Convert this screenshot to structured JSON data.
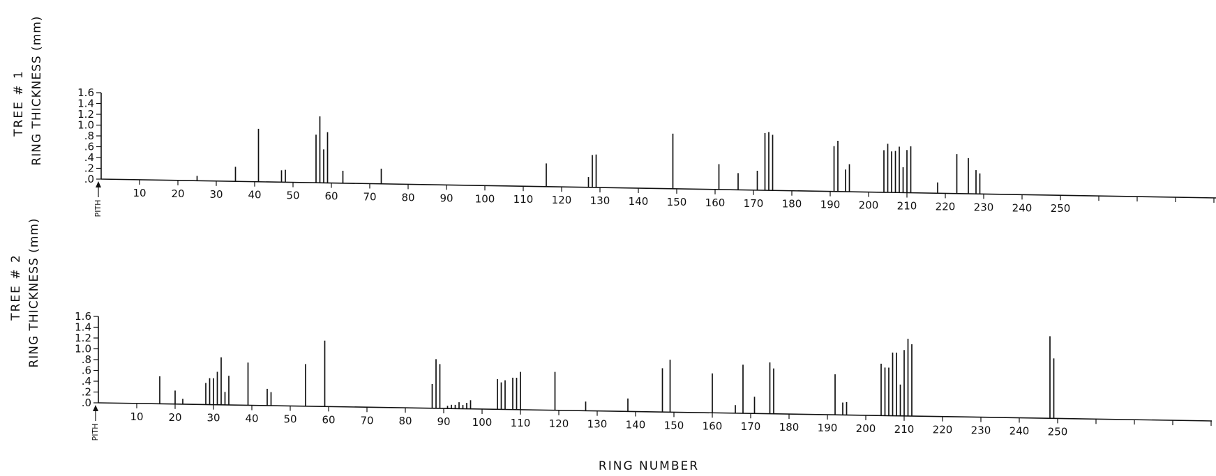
{
  "chart_data": [
    {
      "type": "bar",
      "tree_label": "TREE # 1",
      "ylabel": "RING THICKNESS (mm)",
      "ytick_labels": [
        ".0",
        ".2",
        ".4",
        ".6",
        ".8",
        "1.0",
        "1.2",
        "1.4",
        "1.6"
      ],
      "ylim": [
        0,
        1.6
      ],
      "xtick_labels": [
        "10",
        "20",
        "30",
        "40",
        "50",
        "60",
        "70",
        "80",
        "90",
        "100",
        "110",
        "120",
        "130",
        "140",
        "150",
        "160",
        "170",
        "180",
        "190",
        "200",
        "210",
        "220",
        "230",
        "240",
        "250"
      ],
      "pith_label": "PITH",
      "x": [
        25,
        35,
        41,
        47,
        48,
        56,
        57,
        58,
        59,
        63,
        73,
        116,
        127,
        128,
        129,
        149,
        161,
        166,
        171,
        173,
        174,
        175,
        191,
        192,
        194,
        195,
        204,
        205,
        206,
        207,
        208,
        209,
        210,
        211,
        218,
        223,
        226,
        228,
        229
      ],
      "values": [
        0.09,
        0.27,
        0.98,
        0.22,
        0.23,
        0.89,
        1.23,
        0.62,
        0.94,
        0.23,
        0.28,
        0.43,
        0.19,
        0.6,
        0.61,
        1.02,
        0.47,
        0.31,
        0.36,
        1.06,
        1.08,
        1.03,
        0.84,
        0.94,
        0.41,
        0.51,
        0.78,
        0.9,
        0.76,
        0.77,
        0.85,
        0.47,
        0.79,
        0.86,
        0.2,
        0.73,
        0.66,
        0.44,
        0.38
      ]
    },
    {
      "type": "bar",
      "tree_label": "TREE # 2",
      "ylabel": "RING THICKNESS (mm)",
      "ytick_labels": [
        ".0",
        ".2",
        ".4",
        ".6",
        ".8",
        "1.0",
        "1.2",
        "1.4",
        "1.6"
      ],
      "ylim": [
        0,
        1.6
      ],
      "xtick_labels": [
        "10",
        "20",
        "30",
        "40",
        "50",
        "60",
        "70",
        "80",
        "90",
        "100",
        "110",
        "120",
        "130",
        "140",
        "150",
        "160",
        "170",
        "180",
        "190",
        "200",
        "210",
        "220",
        "230",
        "240",
        "250"
      ],
      "pith_label": "PITH",
      "x": [
        16,
        20,
        22,
        28,
        29,
        30,
        31,
        32,
        33,
        34,
        39,
        44,
        45,
        54,
        59,
        87,
        88,
        89,
        91,
        92,
        93,
        94,
        95,
        96,
        97,
        104,
        105,
        106,
        108,
        109,
        110,
        119,
        127,
        138,
        147,
        149,
        160,
        166,
        168,
        171,
        175,
        176,
        192,
        194,
        195,
        204,
        205,
        206,
        207,
        208,
        209,
        210,
        211,
        212,
        248,
        249
      ],
      "values": [
        0.51,
        0.25,
        0.1,
        0.4,
        0.49,
        0.49,
        0.61,
        0.88,
        0.24,
        0.54,
        0.79,
        0.31,
        0.25,
        0.78,
        1.22,
        0.45,
        0.91,
        0.82,
        0.05,
        0.07,
        0.07,
        0.12,
        0.07,
        0.11,
        0.16,
        0.56,
        0.5,
        0.54,
        0.59,
        0.59,
        0.7,
        0.71,
        0.17,
        0.24,
        0.81,
        0.97,
        0.73,
        0.15,
        0.9,
        0.31,
        0.95,
        0.84,
        0.75,
        0.23,
        0.24,
        0.96,
        0.89,
        0.89,
        1.17,
        1.17,
        0.58,
        1.22,
        1.43,
        1.33,
        1.52,
        1.11
      ]
    }
  ],
  "xlabel": "RING NUMBER"
}
